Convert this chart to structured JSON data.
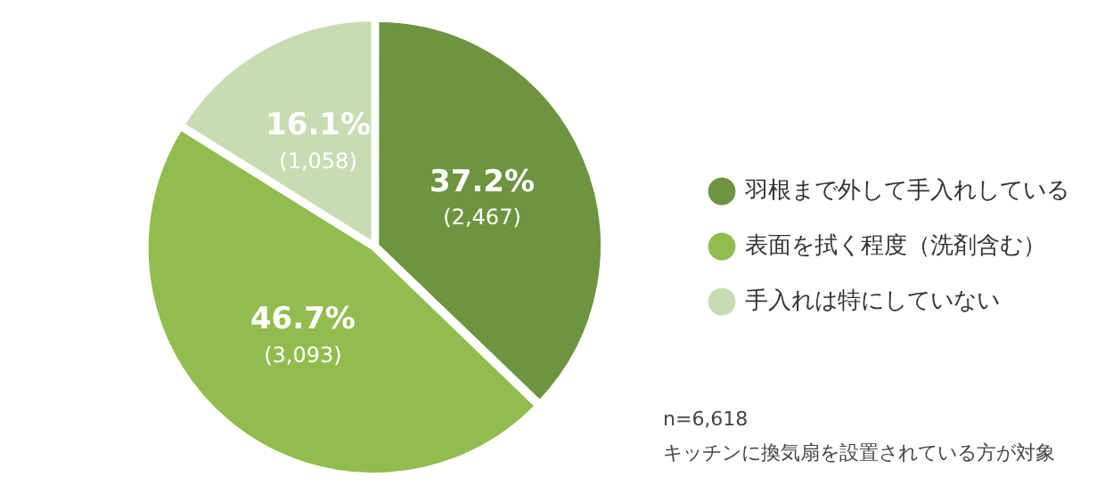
{
  "chart_data": {
    "type": "pie",
    "categories": [
      "羽根まで外して手入れしている",
      "表面を拭く程度（洗剤含む）",
      "手入れは特にしていない"
    ],
    "values": [
      37.2,
      46.7,
      16.1
    ],
    "colors": [
      "#6e9440",
      "#92bd4e",
      "#c9dbb3"
    ],
    "value_labels": [
      "37.2%\n(2,467)",
      "46.7%\n(3,093)",
      "16.1%\n(1,058)"
    ],
    "legend": "right",
    "annotations": [
      "n=6,618",
      "キッチンに換気扇を設置されている方が対象"
    ]
  }
}
